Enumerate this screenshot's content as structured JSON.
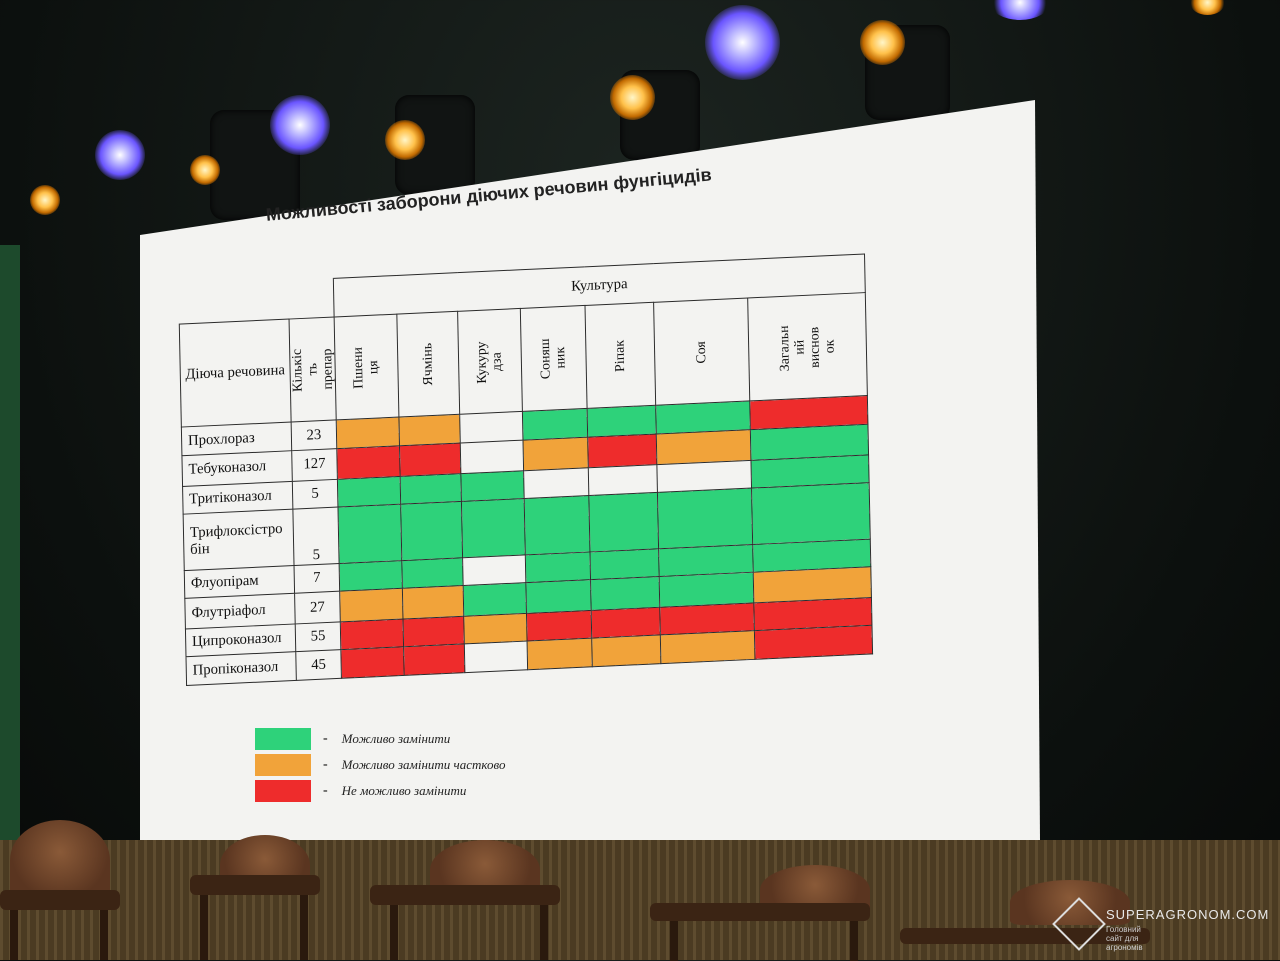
{
  "slide": {
    "title": "Можливості заборони діючих речовин фунгіцидів"
  },
  "table": {
    "group_header": "Культура",
    "col_substance": "Діюча речовина",
    "col_count": "Кількіс\nть\nпрепар",
    "crops": [
      "Пшени\nця",
      "Ячмінь",
      "Кукуру\nдза",
      "Соняш\nник",
      "Ріпак",
      "Соя"
    ],
    "col_summary": "Загальн\nий\nвиснов\nок",
    "colors": {
      "g": "#2ed27a",
      "o": "#f1a33a",
      "r": "#ee2c2c",
      "w": "#f3f3f1"
    },
    "rows": [
      {
        "name": "Прохлораз",
        "count": "23",
        "cells": [
          "o",
          "o",
          "w",
          "g",
          "g",
          "g",
          "r"
        ]
      },
      {
        "name": "Тебуконазол",
        "count": "127",
        "cells": [
          "r",
          "r",
          "w",
          "o",
          "r",
          "o",
          "g"
        ]
      },
      {
        "name": "Тритіконазол",
        "count": "5",
        "cells": [
          "g",
          "g",
          "g",
          "w",
          "w",
          "w",
          "g"
        ]
      },
      {
        "name": "Трифлоксістро\nбін",
        "count": "5",
        "cells": [
          "g",
          "g",
          "g",
          "g",
          "g",
          "g",
          "g"
        ]
      },
      {
        "name": "Флуопірам",
        "count": "7",
        "cells": [
          "g",
          "g",
          "w",
          "g",
          "g",
          "g",
          "g"
        ]
      },
      {
        "name": "Флутріафол",
        "count": "27",
        "cells": [
          "o",
          "o",
          "g",
          "g",
          "g",
          "g",
          "o"
        ]
      },
      {
        "name": "Ципроконазол",
        "count": "55",
        "cells": [
          "r",
          "r",
          "o",
          "r",
          "r",
          "r",
          "r"
        ]
      },
      {
        "name": "Пропіконазол",
        "count": "45",
        "cells": [
          "r",
          "r",
          "w",
          "o",
          "o",
          "o",
          "r"
        ]
      }
    ]
  },
  "legend": {
    "dash": "-",
    "items": [
      {
        "color": "#2ed27a",
        "label": "Можливо замінити"
      },
      {
        "color": "#f1a33a",
        "label": "Можливо замінити частково"
      },
      {
        "color": "#ee2c2c",
        "label": "Не можливо замінити"
      }
    ]
  },
  "watermark": {
    "title": "SUPERAGRONOM.COM",
    "subtitle": "Головний сайт для агрономів"
  }
}
